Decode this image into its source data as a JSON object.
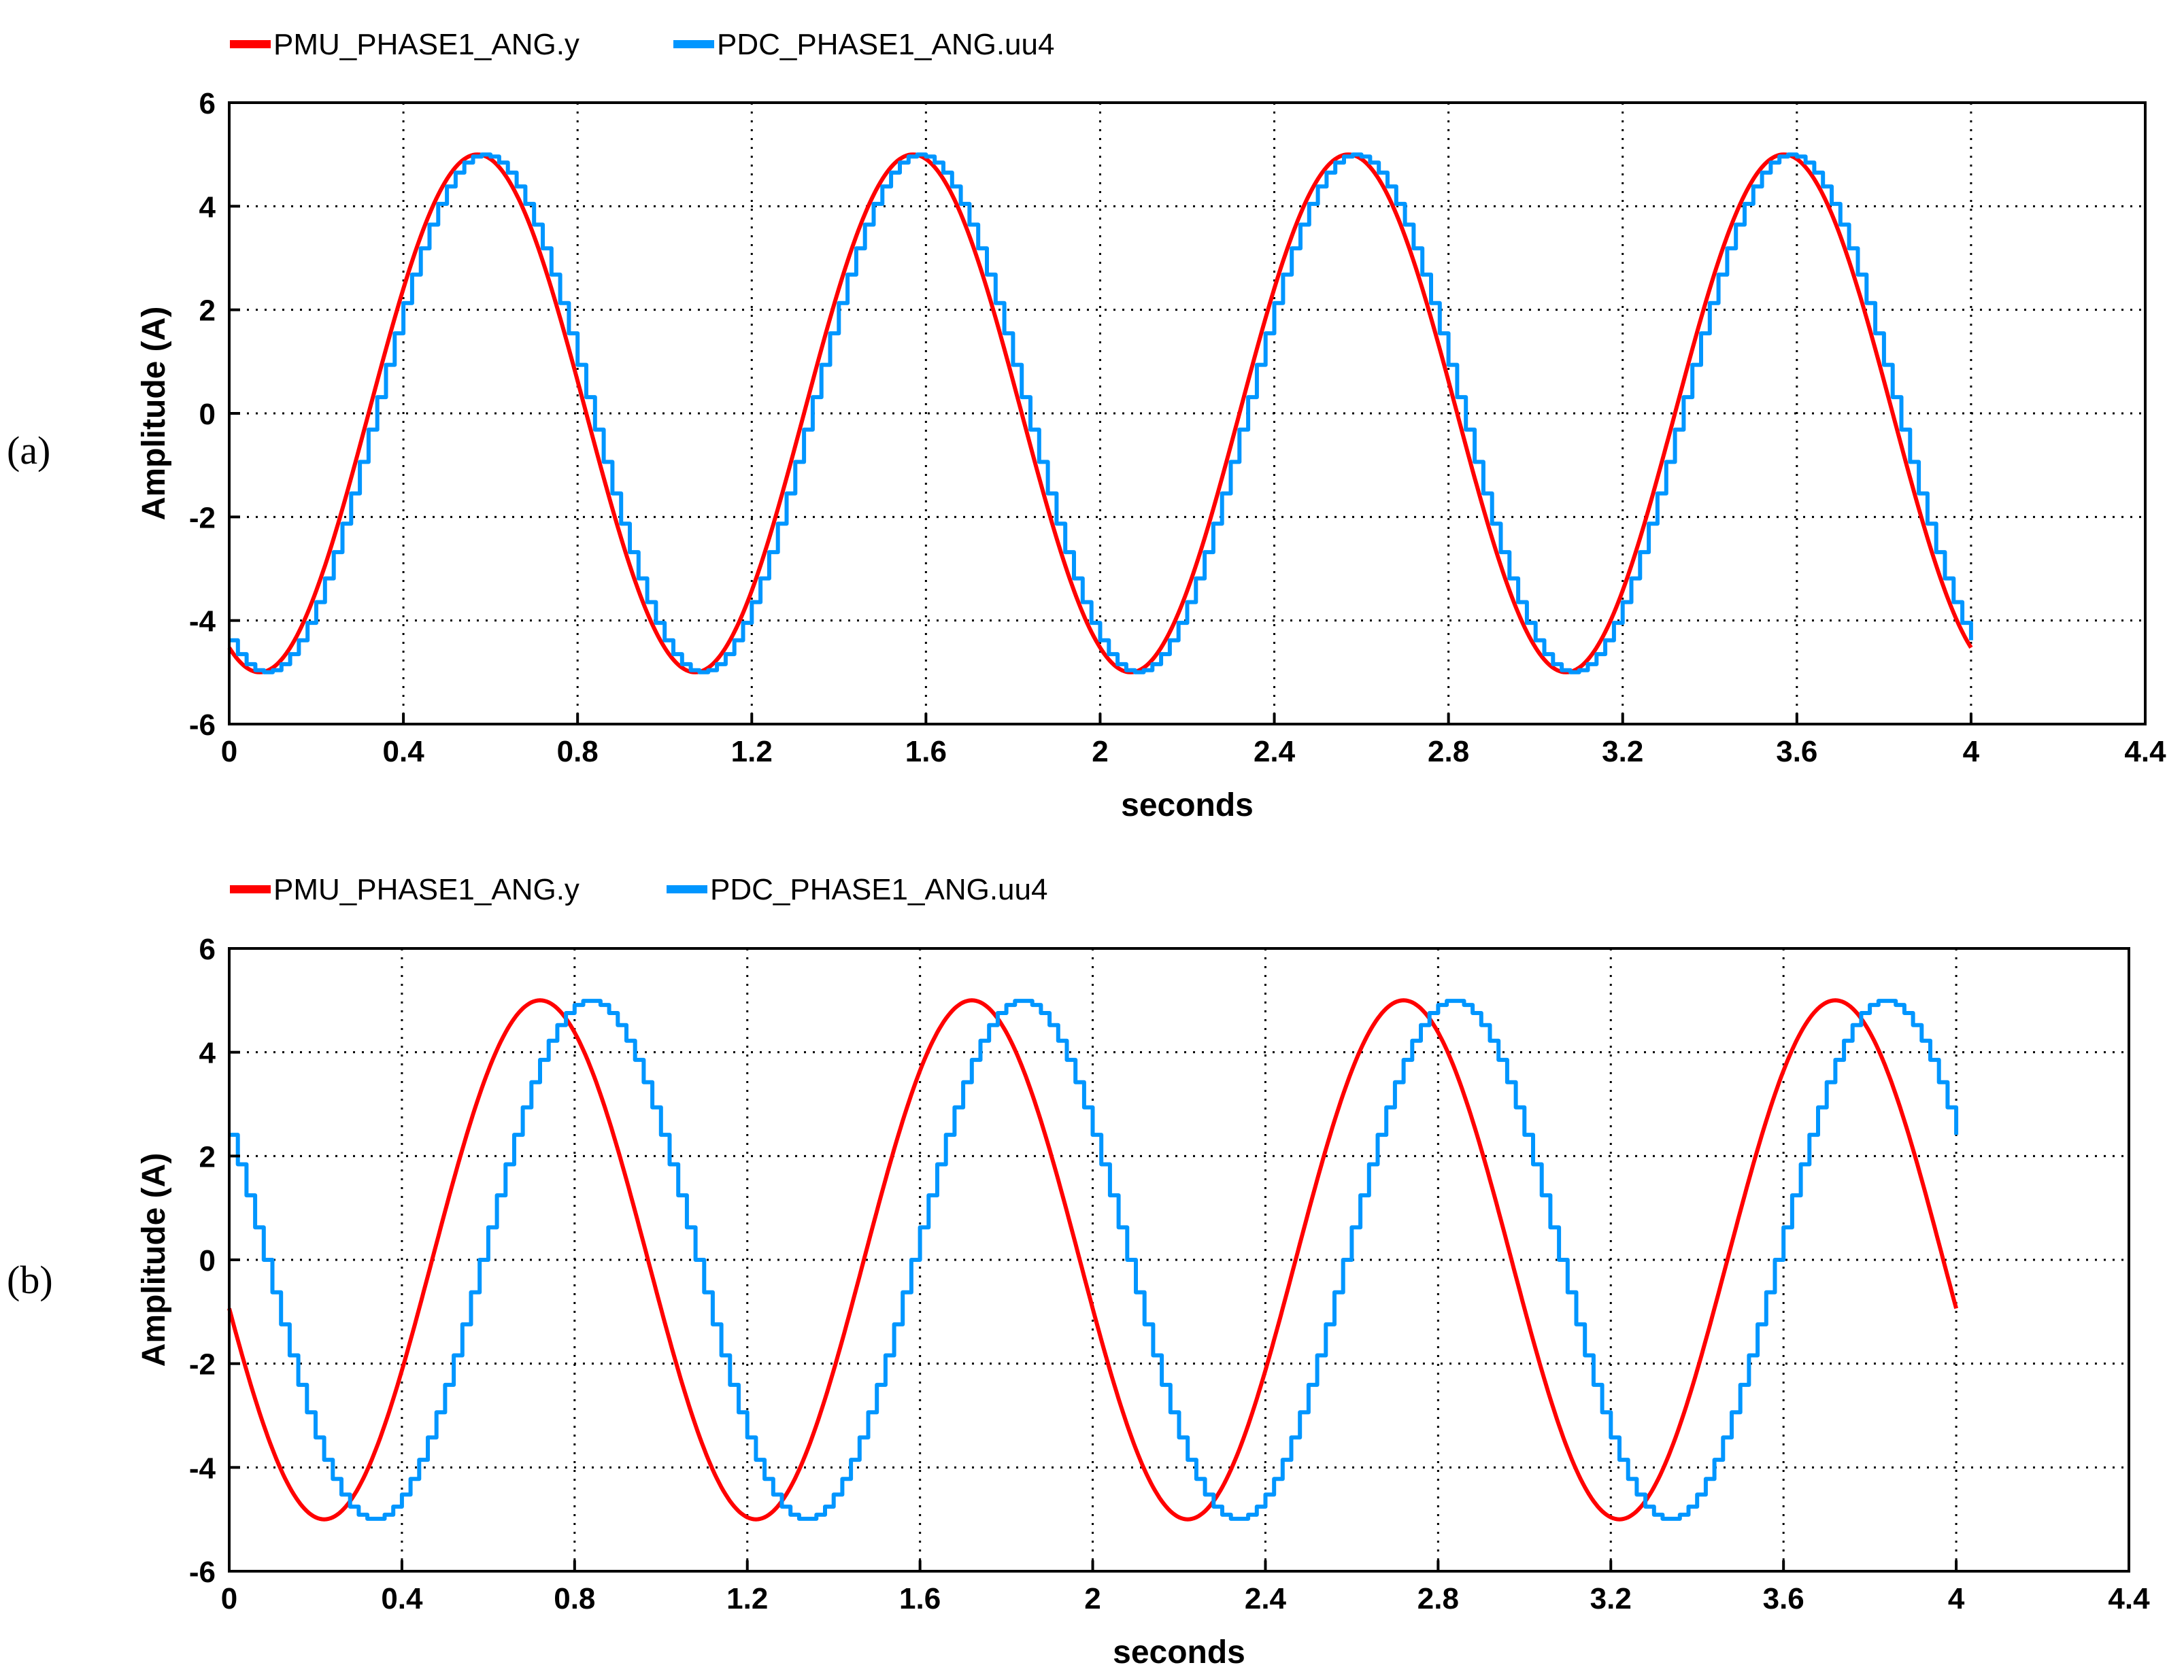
{
  "chart_data": [
    {
      "type": "line",
      "panel_label": "(a)",
      "xlabel": "seconds",
      "ylabel": "Amplitude (A)",
      "xlim": [
        0,
        4.4
      ],
      "ylim": [
        -6,
        6
      ],
      "x_ticks": [
        "0",
        "0.4",
        "0.8",
        "1.2",
        "1.6",
        "2",
        "2.4",
        "2.8",
        "3.2",
        "3.6",
        "4",
        "4.4"
      ],
      "y_ticks": [
        "6",
        "4",
        "2",
        "0",
        "-2",
        "-4",
        "-6"
      ],
      "grid": true,
      "legend_position": "top-left",
      "series": [
        {
          "name": "PMU_PHASE1_ANG.y",
          "color": "#ff0000",
          "style": "smooth",
          "amplitude": 5,
          "period": 1.0,
          "peak_at": 0.57,
          "x_range": [
            0,
            4
          ]
        },
        {
          "name": "PDC_PHASE1_ANG.uu4",
          "color": "#0096ff",
          "style": "stepped",
          "amplitude": 5,
          "period": 1.0,
          "peak_at": 0.58,
          "step": 0.02,
          "x_range": [
            0,
            4
          ]
        }
      ]
    },
    {
      "type": "line",
      "panel_label": "(b)",
      "xlabel": "seconds",
      "ylabel": "Amplitude (A)",
      "xlim": [
        0,
        4.4
      ],
      "ylim": [
        -6,
        6
      ],
      "x_ticks": [
        "0",
        "0.4",
        "0.8",
        "1.2",
        "1.6",
        "2",
        "2.4",
        "2.8",
        "3.2",
        "3.6",
        "4",
        "4.4"
      ],
      "y_ticks": [
        "6",
        "4",
        "2",
        "0",
        "-2",
        "-4",
        "-6"
      ],
      "grid": true,
      "legend_position": "top-left",
      "series": [
        {
          "name": "PMU_PHASE1_ANG.y",
          "color": "#ff0000",
          "style": "smooth",
          "amplitude": 5,
          "period": 1.0,
          "peak_at": 0.72,
          "x_range": [
            0,
            4
          ]
        },
        {
          "name": "PDC_PHASE1_ANG.uu4",
          "color": "#0096ff",
          "style": "stepped",
          "amplitude": 5,
          "period": 1.0,
          "peak_at": 0.83,
          "step": 0.02,
          "x_range": [
            0,
            4
          ]
        }
      ]
    }
  ]
}
